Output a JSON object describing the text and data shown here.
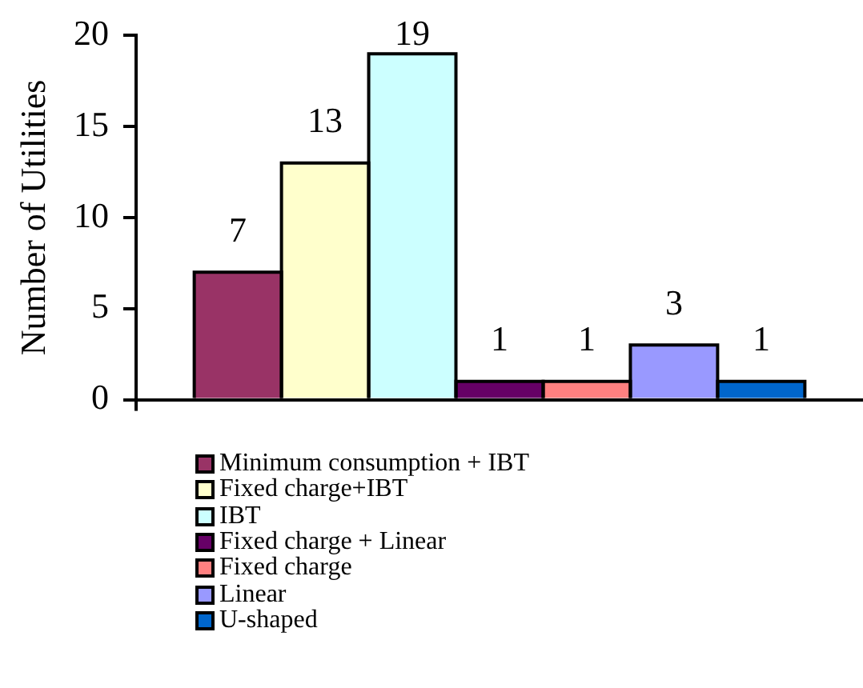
{
  "chart_data": {
    "type": "bar",
    "ylabel": "Number of Utilities",
    "categories": [
      null
    ],
    "series": [
      {
        "name": "Minimum consumption + IBT",
        "color": "#993366",
        "values": [
          7
        ]
      },
      {
        "name": "Fixed charge+IBT",
        "color": "#ffffcc",
        "values": [
          13
        ]
      },
      {
        "name": "IBT",
        "color": "#ccffff",
        "values": [
          19
        ]
      },
      {
        "name": "Fixed charge + Linear",
        "color": "#660066",
        "values": [
          1
        ]
      },
      {
        "name": "Fixed charge",
        "color": "#ff8080",
        "values": [
          1
        ]
      },
      {
        "name": "Linear",
        "color": "#9999ff",
        "values": [
          3
        ]
      },
      {
        "name": "U-shaped",
        "color": "#0066cc",
        "values": [
          1
        ]
      }
    ],
    "ylim": [
      0,
      20
    ],
    "yticks": [
      0,
      5,
      10,
      15,
      20
    ],
    "grid": false,
    "legend": "bottom",
    "data_labels": true
  }
}
